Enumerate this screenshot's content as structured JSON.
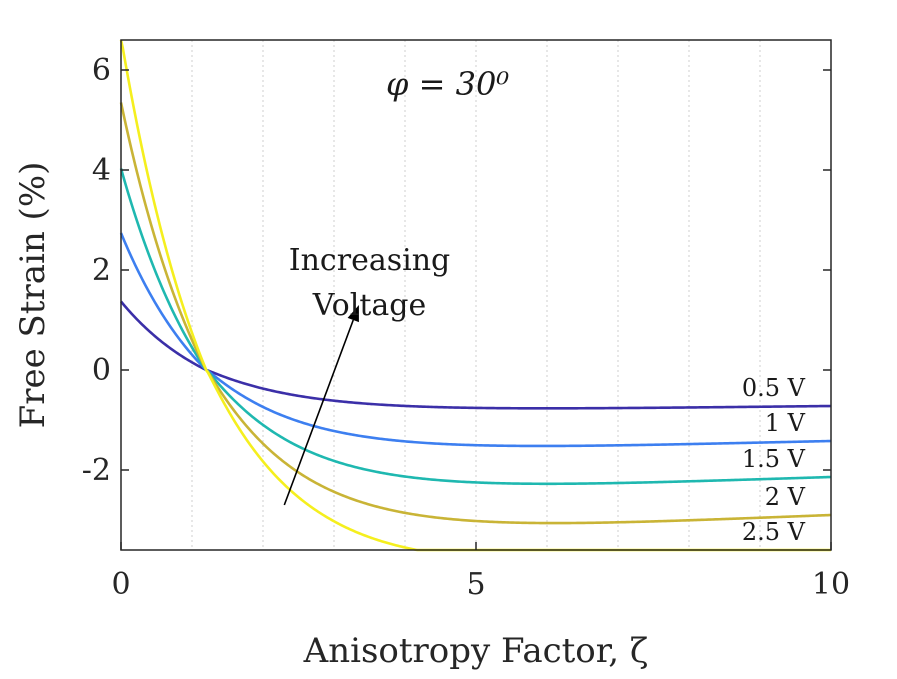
{
  "chart_data": {
    "type": "line",
    "title": "φ = 30⁰",
    "xlabel": "Anisotropy Factor, ζ",
    "ylabel": "Free Strain (%)",
    "xlim": [
      0,
      10
    ],
    "ylim": [
      -3.6,
      6.6
    ],
    "xticks": [
      0,
      5,
      10
    ],
    "xtick_labels": [
      "0",
      "5",
      "10"
    ],
    "yticks": [
      -2,
      0,
      2,
      4,
      6
    ],
    "ytick_labels": [
      "-2",
      "0",
      "2",
      "4",
      "6"
    ],
    "minor_grid_x": [
      1,
      2,
      3,
      4,
      5,
      6,
      7,
      8,
      9
    ],
    "annotation": {
      "line1": "Increasing",
      "line2": "Voltage",
      "arrow_from": [
        2.3,
        -2.7
      ],
      "arrow_to": [
        3.35,
        1.3
      ]
    },
    "series": [
      {
        "name": "0.5 V",
        "label": "0.5 V",
        "color": "#3b2fa8",
        "y0": 1.37,
        "yinf": -0.96,
        "yend": -0.72
      },
      {
        "name": "1 V",
        "label": "1 V",
        "color": "#3d7ff0",
        "y0": 2.74,
        "yinf": -1.92,
        "yend": -1.42
      },
      {
        "name": "1.5 V",
        "label": "1.5 V",
        "color": "#1fb8b0",
        "y0": 4.03,
        "yinf": -2.85,
        "yend": -2.14
      },
      {
        "name": "2 V",
        "label": "2 V",
        "color": "#c9b436",
        "y0": 5.35,
        "yinf": -3.78,
        "yend": -2.9
      },
      {
        "name": "2.5 V",
        "label": "2.5 V",
        "color": "#f5ef1e",
        "y0": 6.65,
        "yinf": -4.7,
        "yend": -3.6
      }
    ],
    "x_cross": 1.2
  }
}
